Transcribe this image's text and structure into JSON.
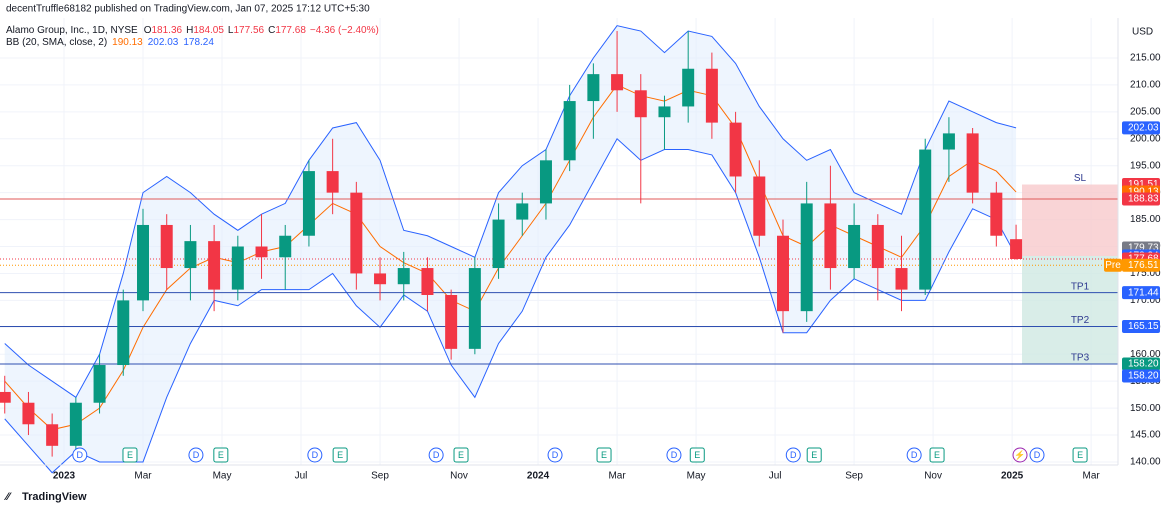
{
  "header": "decentTruffle68182 published on TradingView.com, Jan 07, 2025 17:12 UTC+5:30",
  "legend": {
    "symbol": "Alamo Group, Inc., 1D, NYSE",
    "ohlc": [
      {
        "prefix": "O",
        "text": "181.36"
      },
      {
        "prefix": "H",
        "text": "184.05"
      },
      {
        "prefix": "L",
        "text": "177.56"
      },
      {
        "prefix": "C",
        "text": "177.68"
      }
    ],
    "change": "−4.36 (−2.40%)",
    "indicator": "BB (20, SMA, close, 2)",
    "indicator_values": [
      {
        "text": "190.13",
        "color": "#ff6d00"
      },
      {
        "text": "202.03",
        "color": "#2962ff"
      },
      {
        "text": "178.24",
        "color": "#2962ff"
      }
    ]
  },
  "currency": "USD",
  "footer": "TradingView",
  "chart_data": {
    "type": "candlestick",
    "x": [
      -1.5,
      -0.9,
      -0.3,
      0.3,
      0.9,
      1.5,
      2.0,
      2.6,
      3.2,
      3.8,
      4.4,
      5.0,
      5.6,
      6.2,
      6.8,
      7.4,
      8.0,
      8.6,
      9.2,
      9.8,
      10.4,
      11.0,
      11.6,
      12.2,
      12.8,
      13.4,
      14.0,
      14.6,
      15.2,
      15.8,
      16.4,
      17.0,
      17.6,
      18.2,
      18.8,
      19.4,
      20.0,
      20.6,
      21.2,
      21.8,
      22.4,
      23.0,
      23.6,
      24.1
    ],
    "open": [
      153,
      151,
      147,
      143,
      151,
      158,
      170,
      184,
      176,
      181,
      172,
      180,
      178,
      182,
      194,
      190,
      175,
      173,
      176,
      171,
      161,
      176,
      185,
      188,
      196,
      207,
      212,
      209,
      204,
      206,
      213,
      203,
      193,
      182,
      168,
      188,
      176,
      184,
      176,
      172,
      198,
      201,
      190,
      181.36
    ],
    "high": [
      156,
      153,
      149,
      152,
      160,
      172,
      187,
      186,
      184,
      184,
      182,
      186,
      184,
      196,
      200,
      192,
      178,
      179,
      178,
      172,
      178,
      188,
      190,
      198,
      210,
      214,
      220,
      212,
      208,
      220,
      216,
      205,
      196,
      185,
      192,
      195,
      188,
      186,
      182,
      200,
      204,
      202,
      192,
      184.05
    ],
    "low": [
      149,
      145,
      141,
      142,
      149,
      156,
      168,
      172,
      170,
      168,
      170,
      174,
      172,
      180,
      186,
      172,
      170,
      170,
      168,
      159,
      160,
      174,
      182,
      185,
      194,
      200,
      205,
      188,
      198,
      203,
      200,
      190,
      180,
      164,
      166,
      172,
      174,
      170,
      168,
      171,
      192,
      188,
      180,
      177.56
    ],
    "close": [
      151,
      147,
      143,
      151,
      158,
      170,
      184,
      176,
      181,
      172,
      180,
      178,
      182,
      194,
      190,
      175,
      173,
      176,
      171,
      161,
      176,
      185,
      188,
      196,
      207,
      212,
      209,
      204,
      206,
      213,
      203,
      193,
      182,
      168,
      188,
      176,
      184,
      176,
      172,
      198,
      201,
      190,
      182,
      177.68
    ],
    "up_color": "#089981",
    "down_color": "#f23645",
    "bb": {
      "upper": [
        162,
        158,
        155,
        152,
        160,
        175,
        190,
        193,
        190,
        186,
        183,
        186,
        188,
        196,
        202,
        203,
        196,
        183,
        182,
        180,
        178,
        190,
        195,
        198,
        208,
        215,
        221,
        220,
        216,
        220,
        219,
        214,
        206,
        200,
        196,
        198,
        190,
        188,
        186,
        198,
        207,
        205,
        203,
        202.03
      ],
      "basis": [
        155,
        150,
        146,
        147,
        150,
        157,
        165,
        172,
        176,
        178,
        177,
        179,
        180,
        184,
        188,
        186,
        180,
        177,
        175,
        170,
        168,
        176,
        182,
        188,
        196,
        204,
        210,
        208,
        207,
        209,
        208,
        202,
        192,
        182,
        180,
        184,
        182,
        180,
        178,
        184,
        193,
        196,
        194,
        190.13
      ],
      "lower": [
        148,
        143,
        138,
        142,
        140,
        140,
        140,
        152,
        162,
        170,
        169,
        172,
        172,
        172,
        175,
        169,
        165,
        171,
        168,
        158,
        152,
        162,
        168,
        178,
        184,
        192,
        200,
        196,
        198,
        198,
        197,
        190,
        178,
        164,
        164,
        170,
        174,
        172,
        170,
        170,
        179,
        187,
        185,
        178.24
      ],
      "band_color": "#2962ff",
      "basis_color": "#ff6d00",
      "fill": "#e3effd"
    },
    "xlim": [
      -1.62,
      26.68
    ],
    "xticks": [
      {
        "value": 0,
        "label": "2023"
      },
      {
        "value": 2,
        "label": "Mar"
      },
      {
        "value": 4,
        "label": "May"
      },
      {
        "value": 6,
        "label": "Jul"
      },
      {
        "value": 8,
        "label": "Sep"
      },
      {
        "value": 10,
        "label": "Nov"
      },
      {
        "value": 12,
        "label": "2024"
      },
      {
        "value": 14,
        "label": "Mar"
      },
      {
        "value": 16,
        "label": "May"
      },
      {
        "value": 18,
        "label": "Jul"
      },
      {
        "value": 20,
        "label": "Sep"
      },
      {
        "value": 22,
        "label": "Nov"
      },
      {
        "value": 24,
        "label": "2025"
      },
      {
        "value": 26,
        "label": "Mar"
      }
    ],
    "ylim": [
      139.44,
      222.42
    ],
    "yticks": [
      {
        "value": 140,
        "label": "140.00"
      },
      {
        "value": 145,
        "label": "145.00"
      },
      {
        "value": 150,
        "label": "150.00"
      },
      {
        "value": 155,
        "label": "155.00"
      },
      {
        "value": 160,
        "label": "160.00"
      },
      {
        "value": 165,
        "label": "165.00"
      },
      {
        "value": 170,
        "label": "170.00"
      },
      {
        "value": 175,
        "label": "175.00"
      },
      {
        "value": 180,
        "label": "180.00"
      },
      {
        "value": 185,
        "label": "185.00"
      },
      {
        "value": 190,
        "label": "190.00"
      },
      {
        "value": 195,
        "label": "195.00"
      },
      {
        "value": 200,
        "label": "200.00"
      },
      {
        "value": 205,
        "label": "205.00"
      },
      {
        "value": 210,
        "label": "210.00"
      },
      {
        "value": 215,
        "label": "215.00"
      }
    ],
    "grid": true,
    "levels": [
      {
        "value": 188.83,
        "color": "#e05a5a"
      },
      {
        "value": 171.44,
        "color": "#2f4fb0"
      },
      {
        "value": 165.15,
        "color": "#2f4fb0"
      },
      {
        "value": 158.2,
        "color": "#2f4fb0"
      }
    ],
    "dotted_levels": [
      {
        "value": 177.68,
        "color": "#f23645"
      },
      {
        "value": 176.51,
        "color": "#ff9800"
      }
    ],
    "position": {
      "stop": 191.51,
      "entry": 178.24,
      "target": 158.2,
      "start": 24.25,
      "stop_fill": "#f8c9cc",
      "target_fill": "#cfe9e2"
    },
    "position_labels": [
      {
        "label": "SL",
        "value": 191.51
      },
      {
        "label": "TP1",
        "value": 171.44
      },
      {
        "label": "TP2",
        "value": 165.15
      },
      {
        "label": "TP3",
        "value": 158.2
      }
    ],
    "badges": [
      {
        "value": 202.03,
        "label": "202.03",
        "color": "#2962ff"
      },
      {
        "value": 191.51,
        "label": "191.51",
        "color": "#f23645"
      },
      {
        "value": 190.13,
        "label": "190.13",
        "color": "#ff6d00"
      },
      {
        "value": 188.83,
        "label": "188.83",
        "color": "#f23645"
      },
      {
        "value": 179.73,
        "label": "179.73",
        "color": "#787b86"
      },
      {
        "value": 178.24,
        "label": "178.24",
        "color": "#2962ff"
      },
      {
        "value": 177.68,
        "label": "177.68",
        "color": "#f23645"
      },
      {
        "value": 176.51,
        "label": "176.51",
        "color": "#ff9800",
        "tag": "Pre"
      },
      {
        "value": 171.44,
        "label": "171.44",
        "color": "#2962ff"
      },
      {
        "value": 165.15,
        "label": "165.15",
        "color": "#2962ff"
      },
      {
        "value": 158.2,
        "label": "158.20",
        "color": "#089981"
      },
      {
        "value": 158.2,
        "label": "158.20",
        "color": "#2962ff"
      }
    ],
    "events": [
      {
        "x": 0.4,
        "label": "D"
      },
      {
        "x": 1.67,
        "label": "E"
      },
      {
        "x": 3.34,
        "label": "D"
      },
      {
        "x": 3.97,
        "label": "E"
      },
      {
        "x": 6.35,
        "label": "D"
      },
      {
        "x": 6.99,
        "label": "E"
      },
      {
        "x": 9.42,
        "label": "D"
      },
      {
        "x": 10.05,
        "label": "E"
      },
      {
        "x": 12.43,
        "label": "D"
      },
      {
        "x": 13.67,
        "label": "E"
      },
      {
        "x": 15.44,
        "label": "D"
      },
      {
        "x": 16.03,
        "label": "E"
      },
      {
        "x": 18.46,
        "label": "D"
      },
      {
        "x": 18.99,
        "label": "E"
      },
      {
        "x": 21.52,
        "label": "D"
      },
      {
        "x": 22.1,
        "label": "E"
      },
      {
        "x": 24.2,
        "label": "⚡"
      },
      {
        "x": 24.63,
        "label": "D"
      },
      {
        "x": 25.72,
        "label": "E"
      }
    ]
  }
}
